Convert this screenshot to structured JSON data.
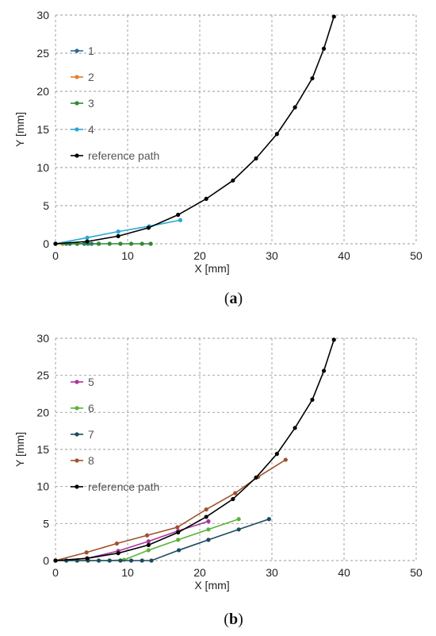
{
  "chart_data": [
    {
      "type": "line",
      "caption_letter": "a",
      "xlabel": "X [mm]",
      "ylabel": "Y [mm]",
      "xlim": [
        0,
        50
      ],
      "ylim": [
        0,
        30
      ],
      "xticks": [
        0,
        10,
        20,
        30,
        40,
        50
      ],
      "yticks": [
        0,
        5,
        10,
        15,
        20,
        25,
        30
      ],
      "grid": true,
      "legend_position": "top-left",
      "series": [
        {
          "name": "1",
          "color": "#2e6a95",
          "x": [
            0,
            1,
            2,
            3,
            4,
            5,
            6
          ],
          "y": [
            0,
            0,
            0,
            0,
            0,
            0,
            0
          ]
        },
        {
          "name": "2",
          "color": "#e87d2a",
          "x": [
            0,
            1
          ],
          "y": [
            0,
            0
          ]
        },
        {
          "name": "3",
          "color": "#2f8a2f",
          "x": [
            0,
            1.5,
            3,
            4.5,
            6,
            7.5,
            9,
            10.5,
            12,
            13.2
          ],
          "y": [
            0,
            0,
            0,
            0,
            0,
            0,
            0,
            0,
            0,
            0
          ]
        },
        {
          "name": "4",
          "color": "#29a7d6",
          "x": [
            0,
            4.4,
            8.7,
            13,
            17.3
          ],
          "y": [
            0,
            0.8,
            1.6,
            2.3,
            3.1
          ]
        },
        {
          "name": "reference path",
          "color": "#000000",
          "x": [
            0,
            4.4,
            8.7,
            12.9,
            17,
            20.9,
            24.6,
            27.8,
            30.7,
            33.2,
            35.6,
            37.2,
            38.6
          ],
          "y": [
            0,
            0.3,
            1.0,
            2.1,
            3.8,
            5.9,
            8.3,
            11.2,
            14.4,
            17.9,
            21.7,
            25.6,
            29.8
          ]
        }
      ]
    },
    {
      "type": "line",
      "caption_letter": "b",
      "xlabel": "X [mm]",
      "ylabel": "Y [mm]",
      "xlim": [
        0,
        50
      ],
      "ylim": [
        0,
        30
      ],
      "xticks": [
        0,
        10,
        20,
        30,
        40,
        50
      ],
      "yticks": [
        0,
        5,
        10,
        15,
        20,
        25,
        30
      ],
      "grid": true,
      "legend_position": "top-left",
      "series": [
        {
          "name": "5",
          "color": "#a9349e",
          "x": [
            0,
            4.4,
            8.7,
            12.9,
            17,
            21.2
          ],
          "y": [
            0,
            0.3,
            1.3,
            2.6,
            4.0,
            5.3
          ]
        },
        {
          "name": "6",
          "color": "#5cb33a",
          "x": [
            0,
            1.5,
            3,
            4.5,
            6,
            7.5,
            9.5,
            12.9,
            17,
            21.2,
            25.4
          ],
          "y": [
            0,
            0,
            0,
            0,
            0,
            0,
            0.1,
            1.4,
            2.8,
            4.2,
            5.6
          ]
        },
        {
          "name": "7",
          "color": "#1c4a5e",
          "x": [
            0,
            1.5,
            3,
            4.5,
            6,
            7.5,
            9,
            10.5,
            12,
            13.3,
            17.1,
            21.2,
            25.4,
            29.6
          ],
          "y": [
            0,
            0,
            0,
            0,
            0,
            0,
            0,
            0,
            0,
            0,
            1.4,
            2.8,
            4.2,
            5.6
          ]
        },
        {
          "name": "8",
          "color": "#a0522d",
          "x": [
            0,
            4.3,
            8.5,
            12.7,
            16.9,
            20.9,
            24.9,
            28.1,
            31.9
          ],
          "y": [
            0,
            1.1,
            2.3,
            3.4,
            4.5,
            6.9,
            9.1,
            11.3,
            13.6
          ]
        },
        {
          "name": "reference path",
          "color": "#000000",
          "x": [
            0,
            4.4,
            8.7,
            12.9,
            17,
            20.9,
            24.6,
            27.8,
            30.7,
            33.2,
            35.6,
            37.2,
            38.6
          ],
          "y": [
            0,
            0.3,
            1.0,
            2.1,
            3.8,
            5.9,
            8.3,
            11.2,
            14.4,
            17.9,
            21.7,
            25.6,
            29.8
          ]
        }
      ]
    }
  ]
}
